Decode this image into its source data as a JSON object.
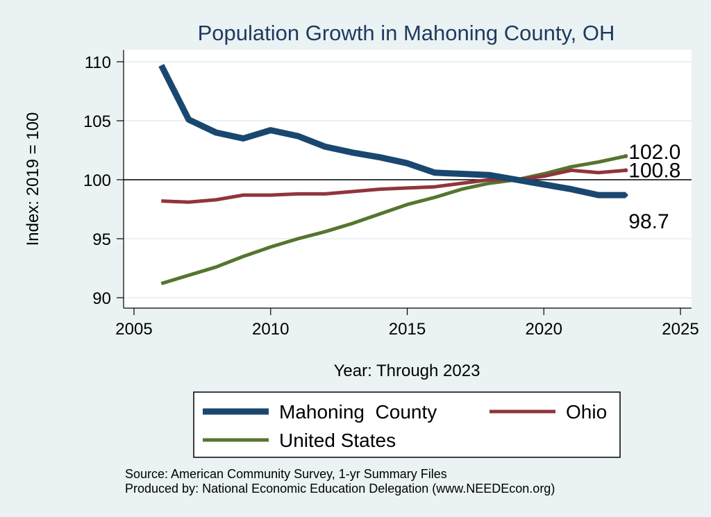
{
  "chart_data": {
    "type": "line",
    "title": "Population Growth in Mahoning County, OH",
    "xlabel": "Year: Through 2023",
    "ylabel": "Index: 2019 = 100",
    "xlim": [
      2005,
      2025
    ],
    "ylim": [
      90,
      110
    ],
    "x_ticks": [
      2005,
      2010,
      2015,
      2020,
      2025
    ],
    "y_ticks": [
      90,
      95,
      100,
      105,
      110
    ],
    "reference_line": 100,
    "grid": "horizontal",
    "legend_position": "bottom",
    "x": [
      2006,
      2007,
      2008,
      2009,
      2010,
      2011,
      2012,
      2013,
      2014,
      2015,
      2016,
      2017,
      2018,
      2019,
      2020,
      2021,
      2022,
      2023
    ],
    "series": [
      {
        "name": "Mahoning  County",
        "color": "#1a476f",
        "values": [
          109.7,
          105.1,
          104.0,
          103.5,
          104.2,
          103.7,
          102.8,
          102.3,
          101.9,
          101.4,
          100.6,
          100.5,
          100.4,
          100.0,
          99.6,
          99.2,
          98.7,
          98.7
        ],
        "end_label": "98.7"
      },
      {
        "name": "Ohio",
        "color": "#90353b",
        "values": [
          98.2,
          98.1,
          98.3,
          98.7,
          98.7,
          98.8,
          98.8,
          99.0,
          99.2,
          99.3,
          99.4,
          99.7,
          100.0,
          100.0,
          100.3,
          100.8,
          100.6,
          100.8
        ],
        "end_label": "100.8"
      },
      {
        "name": "United States",
        "color": "#55752f",
        "values": [
          91.2,
          91.9,
          92.6,
          93.5,
          94.3,
          95.0,
          95.6,
          96.3,
          97.1,
          97.9,
          98.5,
          99.2,
          99.7,
          100.0,
          100.5,
          101.1,
          101.5,
          102.0
        ],
        "end_label": "102.0"
      }
    ],
    "notes": [
      "Source: American Community Survey, 1-yr Summary Files",
      "Produced by: National Economic Education Delegation (www.NEEDEcon.org)"
    ]
  }
}
